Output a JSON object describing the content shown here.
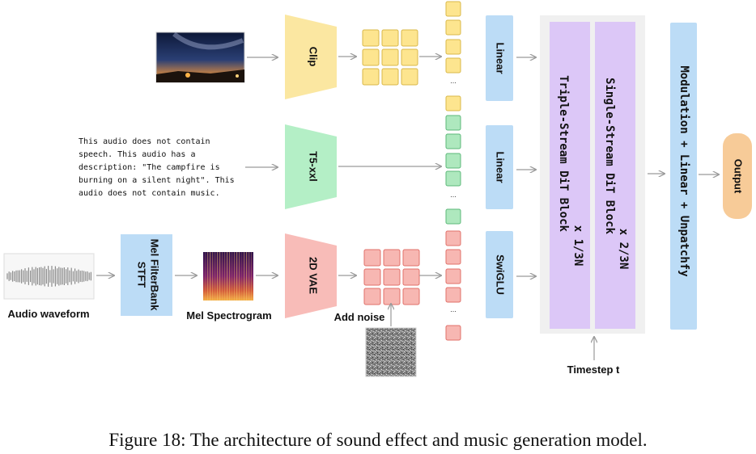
{
  "labels": {
    "audio_waveform": "Audio waveform",
    "stft_line1": "STFT",
    "stft_line2": "Mel FilterBank",
    "mel_spectrogram": "Mel Spectrogram",
    "clip": "Clip",
    "t5": "T5-xxl",
    "vae": "2D VAE",
    "add_noise": "Add noise",
    "linear_1": "Linear",
    "linear_2": "Linear",
    "swiglu": "SwiGLU",
    "triple_stream": "Triple-Stream DiT Block",
    "triple_repeat": "x 1/3N",
    "single_stream": "Single-Stream DiT Block",
    "single_repeat": "x 2/3N",
    "modulation": "Modulation + Linear + Unpatchfy",
    "output": "Output",
    "timestep": "Timestep t",
    "ellipsis": "..."
  },
  "text_prompt": [
    "This audio does not contain",
    "speech. This audio has a",
    "description: \"The campfire is",
    "burning on a silent night\". This",
    "audio does not contain music."
  ],
  "caption": "Figure 18: The architecture of sound effect and music generation model.",
  "colors": {
    "clip": "#fbe7a1",
    "clip_token": "#fde58f",
    "clip_token_border": "#d9b84a",
    "t5": "#b4efc6",
    "t5_token": "#aee8be",
    "t5_token_border": "#5cb879",
    "vae": "#f8bcb8",
    "vae_token": "#f7b7b2",
    "vae_token_border": "#e0706a",
    "blue": "#bcdcf6",
    "purple": "#dcc7f7",
    "panel": "#f0f0f0",
    "output": "#f7cb98",
    "arrow": "#9a9a9a"
  }
}
